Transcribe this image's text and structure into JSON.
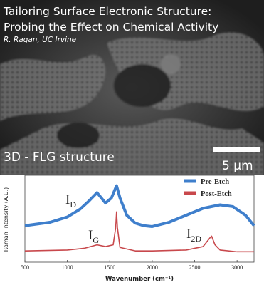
{
  "header": {
    "title_line_1": "Tailoring Surface Electronic Structure:",
    "title_line_2": "Probing the Effect on Chemical Activity",
    "author": "R. Ragan, UC Irvine",
    "caption": "3D - FLG structure",
    "scale_label": "5 μm"
  },
  "chart_data": {
    "type": "line",
    "ylabel": "Raman Intensity (A.U.)",
    "xlabel": "Wavenumber (cm⁻¹)",
    "xlim": [
      500,
      3200
    ],
    "xticks": [
      500,
      1000,
      1500,
      2000,
      2500,
      3000
    ],
    "ylim": [
      0,
      100
    ],
    "legend": "top-right",
    "series": [
      {
        "name": "Pre-Etch",
        "color": "#3f7fcc",
        "x": [
          500,
          800,
          1000,
          1150,
          1250,
          1350,
          1450,
          1520,
          1580,
          1620,
          1700,
          1800,
          1900,
          2000,
          2200,
          2400,
          2600,
          2800,
          2950,
          3100,
          3200
        ],
        "values": [
          42,
          46,
          52,
          61,
          70,
          80,
          68,
          74,
          88,
          74,
          54,
          45,
          42,
          41,
          46,
          54,
          62,
          66,
          64,
          54,
          42
        ]
      },
      {
        "name": "Post-Etch",
        "color": "#c8484c",
        "x": [
          500,
          1000,
          1200,
          1350,
          1450,
          1540,
          1570,
          1580,
          1590,
          1620,
          1800,
          2000,
          2400,
          2600,
          2680,
          2700,
          2740,
          2800,
          3000,
          3200
        ],
        "values": [
          13,
          14,
          16,
          20,
          18,
          20,
          40,
          58,
          40,
          17,
          13,
          13,
          14,
          18,
          28,
          30,
          20,
          14,
          12,
          12
        ]
      }
    ],
    "annotations": [
      {
        "text": "I",
        "sub": "D"
      },
      {
        "text": "I",
        "sub": "G"
      },
      {
        "text": "I",
        "sub": "2D"
      }
    ]
  }
}
